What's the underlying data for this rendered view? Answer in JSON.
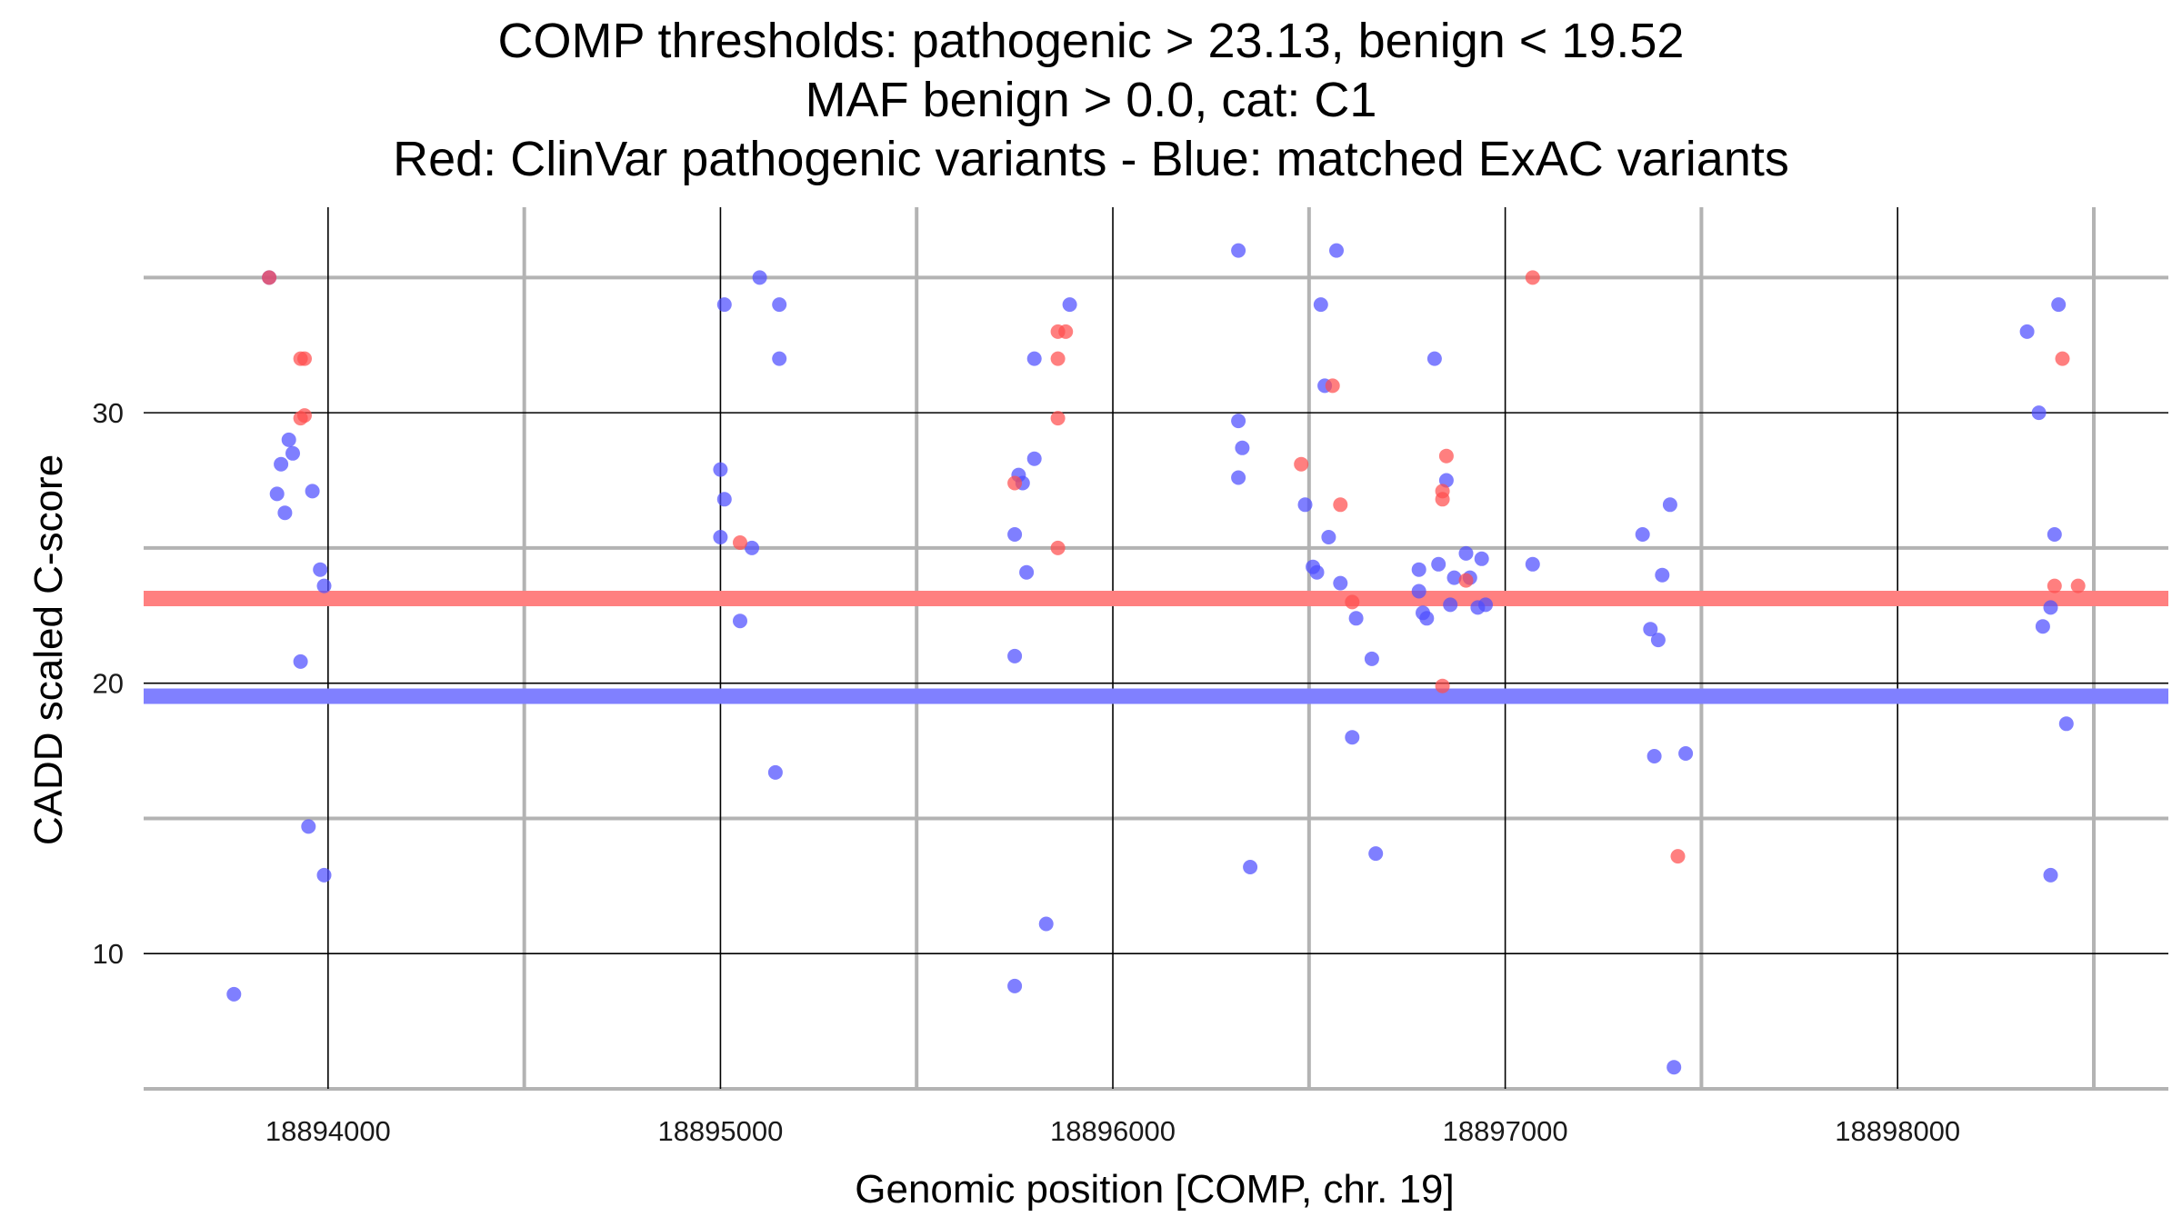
{
  "chart_data": {
    "type": "scatter",
    "title_lines": [
      "COMP thresholds: pathogenic > 23.13, benign < 19.52",
      "MAF benign > 0.0, cat: C1",
      "Red: ClinVar pathogenic variants - Blue: matched ExAC variants"
    ],
    "xlabel": "Genomic position [COMP, chr. 19]",
    "ylabel": "CADD scaled C-score",
    "xlim": [
      18893530,
      18898690
    ],
    "ylim": [
      5,
      37.6
    ],
    "x_major_ticks": [
      18894000,
      18895000,
      18896000,
      18897000,
      18898000
    ],
    "x_minor_grid": [
      18894500,
      18895500,
      18896500,
      18897500,
      18898500
    ],
    "y_major_ticks": [
      10,
      20,
      30
    ],
    "y_minor_grid": [
      5,
      15,
      25,
      35
    ],
    "grid": true,
    "thresholds": [
      {
        "name": "pathogenic",
        "value": 23.13,
        "color": "#ff8080"
      },
      {
        "name": "benign",
        "value": 19.52,
        "color": "#8080ff"
      }
    ],
    "colors": {
      "pathogenic": "#ff4d4d",
      "benign": "#4d4dff"
    },
    "series": [
      {
        "key": "pathogenic",
        "points": [
          [
            18893850,
            35.0
          ],
          [
            18893930,
            32.0
          ],
          [
            18893940,
            32.0
          ],
          [
            18893930,
            29.8
          ],
          [
            18893940,
            29.9
          ],
          [
            18895050,
            25.2
          ],
          [
            18895750,
            27.4
          ],
          [
            18895860,
            33.0
          ],
          [
            18895880,
            33.0
          ],
          [
            18895860,
            32.0
          ],
          [
            18895860,
            29.8
          ],
          [
            18895860,
            25.0
          ],
          [
            18896480,
            28.1
          ],
          [
            18896560,
            31.0
          ],
          [
            18896580,
            26.6
          ],
          [
            18896610,
            23.0
          ],
          [
            18896840,
            27.1
          ],
          [
            18896840,
            26.8
          ],
          [
            18896850,
            28.4
          ],
          [
            18896840,
            19.9
          ],
          [
            18896900,
            23.8
          ],
          [
            18897070,
            35.0
          ],
          [
            18897440,
            13.6
          ],
          [
            18898400,
            23.6
          ],
          [
            18898460,
            23.6
          ],
          [
            18898420,
            32.0
          ]
        ]
      },
      {
        "key": "benign",
        "points": [
          [
            18893850,
            35.0
          ],
          [
            18893760,
            8.5
          ],
          [
            18893870,
            27.0
          ],
          [
            18893880,
            28.1
          ],
          [
            18893890,
            26.3
          ],
          [
            18893900,
            29.0
          ],
          [
            18893910,
            28.5
          ],
          [
            18893930,
            20.8
          ],
          [
            18893950,
            14.7
          ],
          [
            18893960,
            27.1
          ],
          [
            18893980,
            24.2
          ],
          [
            18893990,
            23.6
          ],
          [
            18893990,
            12.9
          ],
          [
            18895000,
            27.9
          ],
          [
            18895010,
            34.0
          ],
          [
            18895010,
            26.8
          ],
          [
            18895000,
            25.4
          ],
          [
            18895050,
            22.3
          ],
          [
            18895080,
            25.0
          ],
          [
            18895100,
            35.0
          ],
          [
            18895150,
            34.0
          ],
          [
            18895150,
            32.0
          ],
          [
            18895140,
            16.7
          ],
          [
            18895750,
            25.5
          ],
          [
            18895750,
            21.0
          ],
          [
            18895750,
            8.8
          ],
          [
            18895760,
            27.7
          ],
          [
            18895770,
            27.4
          ],
          [
            18895780,
            24.1
          ],
          [
            18895800,
            28.3
          ],
          [
            18895800,
            32.0
          ],
          [
            18895830,
            11.1
          ],
          [
            18895890,
            34.0
          ],
          [
            18896320,
            36.0
          ],
          [
            18896320,
            29.7
          ],
          [
            18896330,
            28.7
          ],
          [
            18896320,
            27.6
          ],
          [
            18896350,
            13.2
          ],
          [
            18896490,
            26.6
          ],
          [
            18896510,
            24.3
          ],
          [
            18896520,
            24.1
          ],
          [
            18896530,
            34.0
          ],
          [
            18896540,
            31.0
          ],
          [
            18896550,
            25.4
          ],
          [
            18896570,
            36.0
          ],
          [
            18896580,
            23.7
          ],
          [
            18896610,
            18.0
          ],
          [
            18896620,
            22.4
          ],
          [
            18896660,
            20.9
          ],
          [
            18896670,
            13.7
          ],
          [
            18896780,
            24.2
          ],
          [
            18896780,
            23.4
          ],
          [
            18896790,
            22.6
          ],
          [
            18896800,
            22.4
          ],
          [
            18896820,
            32.0
          ],
          [
            18896830,
            24.4
          ],
          [
            18896850,
            27.5
          ],
          [
            18896860,
            22.9
          ],
          [
            18896870,
            23.9
          ],
          [
            18896900,
            24.8
          ],
          [
            18896910,
            23.9
          ],
          [
            18896930,
            22.8
          ],
          [
            18896940,
            24.6
          ],
          [
            18896950,
            22.9
          ],
          [
            18897070,
            24.4
          ],
          [
            18897350,
            25.5
          ],
          [
            18897370,
            22.0
          ],
          [
            18897390,
            21.6
          ],
          [
            18897380,
            17.3
          ],
          [
            18897400,
            24.0
          ],
          [
            18897420,
            26.6
          ],
          [
            18897430,
            5.8
          ],
          [
            18897460,
            17.4
          ],
          [
            18898330,
            33.0
          ],
          [
            18898360,
            30.0
          ],
          [
            18898370,
            22.1
          ],
          [
            18898390,
            22.8
          ],
          [
            18898390,
            12.9
          ],
          [
            18898400,
            25.5
          ],
          [
            18898410,
            34.0
          ],
          [
            18898430,
            18.5
          ]
        ]
      }
    ]
  }
}
